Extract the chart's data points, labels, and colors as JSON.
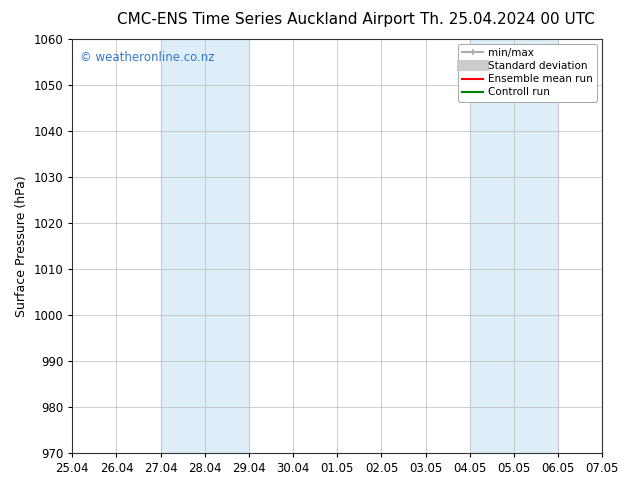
{
  "title_left": "CMC-ENS Time Series Auckland Airport",
  "title_right": "Th. 25.04.2024 00 UTC",
  "ylabel": "Surface Pressure (hPa)",
  "xlabel_ticks": [
    "25.04",
    "26.04",
    "27.04",
    "28.04",
    "29.04",
    "30.04",
    "01.05",
    "02.05",
    "03.05",
    "04.05",
    "05.05",
    "06.05",
    "07.05"
  ],
  "ylim": [
    970,
    1060
  ],
  "xlim": [
    0,
    12
  ],
  "yticks": [
    970,
    980,
    990,
    1000,
    1010,
    1020,
    1030,
    1040,
    1050,
    1060
  ],
  "shaded_bands": [
    {
      "xmin": 2,
      "xmax": 4
    },
    {
      "xmin": 9,
      "xmax": 11
    }
  ],
  "shade_color": "#ddeef8",
  "grid_color": "#bbbbbb",
  "background_color": "#ffffff",
  "watermark_text": "© weatheronline.co.nz",
  "watermark_color": "#3377cc",
  "legend_items": [
    {
      "label": "min/max",
      "color": "#aaaaaa",
      "lw": 1.5
    },
    {
      "label": "Standard deviation",
      "color": "#cccccc",
      "lw": 8
    },
    {
      "label": "Ensemble mean run",
      "color": "#ff0000",
      "lw": 1.5
    },
    {
      "label": "Controll run",
      "color": "#008000",
      "lw": 1.5
    }
  ],
  "title_fontsize": 11,
  "tick_fontsize": 8.5,
  "ylabel_fontsize": 9,
  "watermark_fontsize": 8.5,
  "legend_fontsize": 7.5,
  "spine_color": "#333333"
}
